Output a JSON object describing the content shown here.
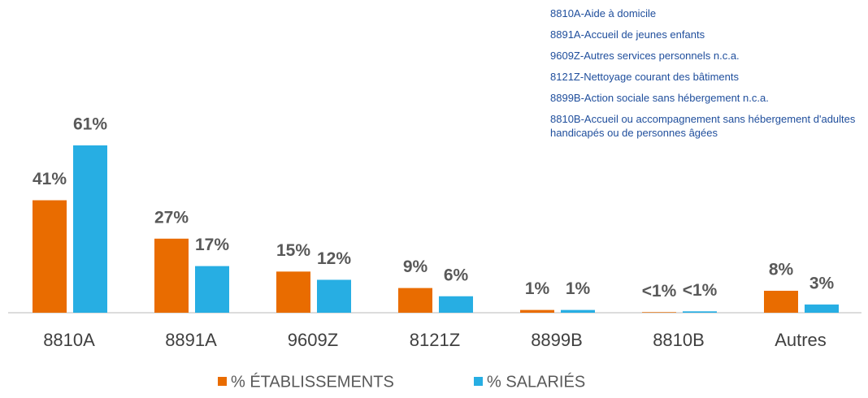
{
  "chart_data": {
    "type": "bar",
    "annotations": [
      "8810A-Aide à domicile",
      "8891A-Accueil de jeunes enfants",
      "9609Z-Autres services personnels n.c.a.",
      "8121Z-Nettoyage courant des bâtiments",
      "8899B-Action sociale sans hébergement n.c.a.",
      "8810B-Accueil ou accompagnement sans hébergement d'adultes handicapés ou de personnes âgées"
    ],
    "categories": [
      "8810A",
      "8891A",
      "9609Z",
      "8121Z",
      "8899B",
      "8810B",
      "Autres"
    ],
    "series": [
      {
        "name": "% ÉTABLISSEMENTS",
        "color": "#e96c00",
        "values": [
          41,
          27,
          15,
          9,
          1,
          0.2,
          8
        ],
        "value_labels": [
          "41%",
          "27%",
          "15%",
          "9%",
          "1%",
          "<1%",
          "8%"
        ]
      },
      {
        "name": "% SALARIÉS",
        "color": "#27aee3",
        "values": [
          61,
          17,
          12,
          6,
          1,
          0.5,
          3
        ],
        "value_labels": [
          "61%",
          "17%",
          "12%",
          "6%",
          "1%",
          "<1%",
          "3%"
        ]
      }
    ]
  }
}
